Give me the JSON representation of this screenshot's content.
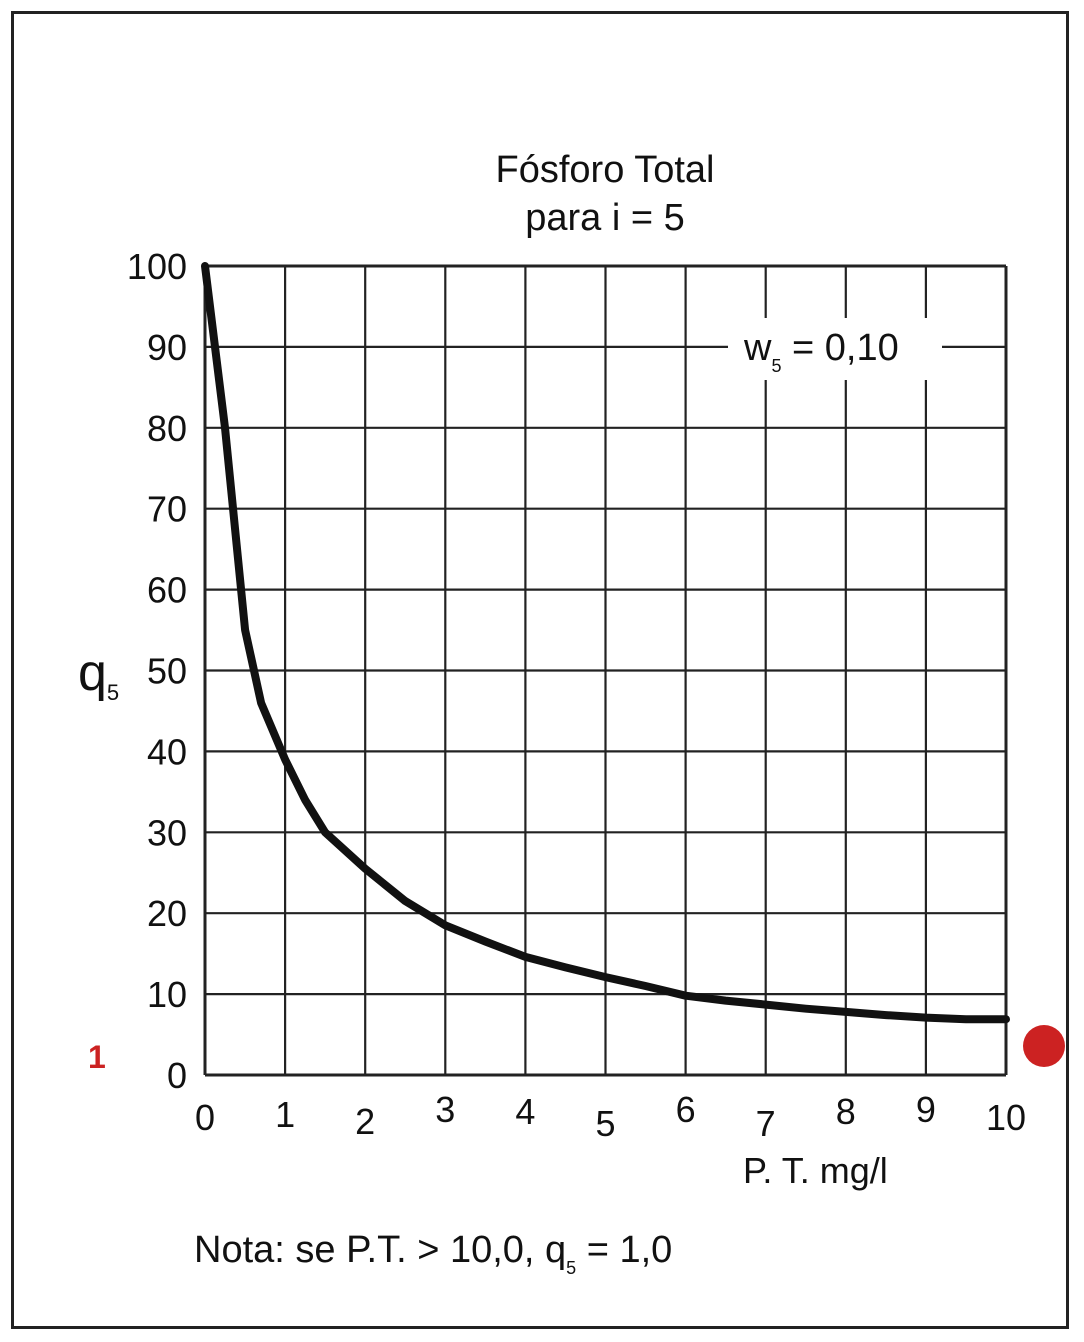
{
  "chart_data": {
    "type": "line",
    "title": "Fósforo Total",
    "subtitle": "para i = 5",
    "xlabel": "P. T.  mg/l",
    "ylabel_main": "q",
    "ylabel_sub": "5",
    "weight": {
      "main": "w",
      "sub": "5",
      "value": " = 0,10"
    },
    "note": {
      "prefix": "Nota: se P.T. > 10,0,  q",
      "sub": "5",
      "suffix": " = 1,0"
    },
    "xlim": [
      0,
      10
    ],
    "ylim": [
      0,
      100
    ],
    "grid": true,
    "x_ticks": [
      "0",
      "1",
      "2",
      "3",
      "4",
      "5",
      "6",
      "7",
      "8",
      "9",
      "10"
    ],
    "y_ticks": [
      "0",
      "10",
      "20",
      "30",
      "40",
      "50",
      "60",
      "70",
      "80",
      "90",
      "100"
    ],
    "series": [
      {
        "x": [
          0,
          0.25,
          0.5,
          0.7,
          1.0,
          1.25,
          1.5,
          2.0,
          2.5,
          3.0,
          3.5,
          4.0,
          4.5,
          5.0,
          5.5,
          6.0,
          6.5,
          7.0,
          7.5,
          8.0,
          8.5,
          9.0,
          9.5,
          10.0
        ],
        "y": [
          100,
          80,
          55,
          46,
          39,
          34,
          30,
          25.5,
          21.5,
          18.5,
          16.5,
          14.6,
          13.3,
          12.1,
          11.0,
          9.8,
          9.2,
          8.7,
          8.2,
          7.8,
          7.4,
          7.1,
          6.9,
          6.9
        ]
      }
    ],
    "annotations": [
      {
        "text": "1",
        "color": "#cc2222"
      }
    ],
    "marker_color": "#cc2222"
  }
}
